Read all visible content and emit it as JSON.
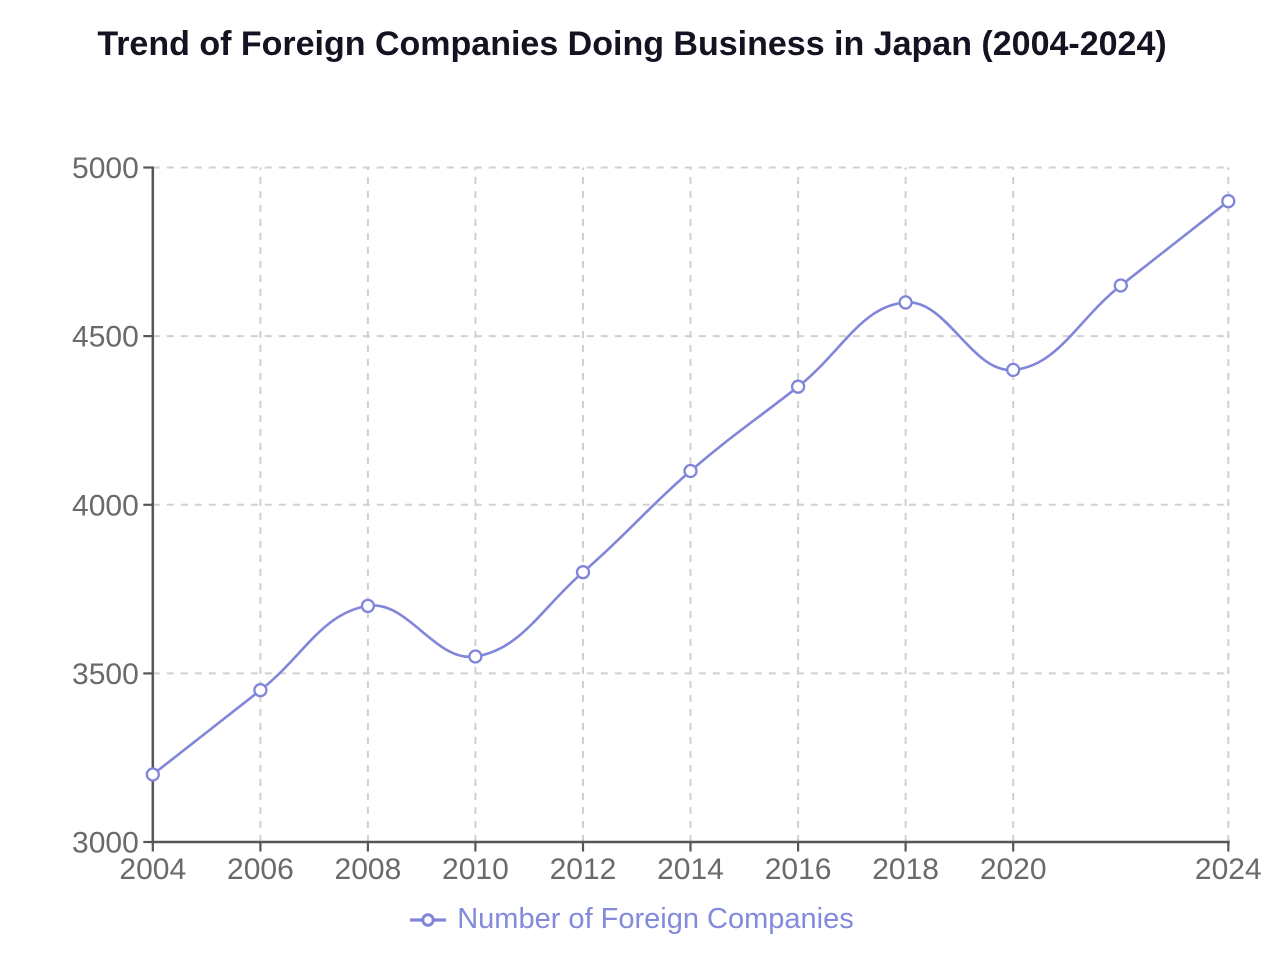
{
  "page": {
    "background_color": "#ffffff"
  },
  "chart": {
    "title": "Trend of Foreign Companies Doing Business in Japan (2004-2024)",
    "legend_label": "Number of Foreign Companies"
  },
  "chart_data": {
    "type": "line",
    "title": "Trend of Foreign Companies Doing Business in Japan (2004-2024)",
    "xlabel": "",
    "ylabel": "",
    "x": [
      2004,
      2006,
      2008,
      2010,
      2012,
      2014,
      2016,
      2018,
      2020,
      2022,
      2024
    ],
    "series": [
      {
        "name": "Number of Foreign Companies",
        "values": [
          3200,
          3450,
          3700,
          3550,
          3800,
          4100,
          4350,
          4600,
          4400,
          4650,
          4900
        ]
      }
    ],
    "xlim": [
      2004,
      2024
    ],
    "ylim": [
      3000,
      5000
    ],
    "x_ticks": [
      2004,
      2006,
      2008,
      2010,
      2012,
      2014,
      2016,
      2018,
      2020,
      2024
    ],
    "x_tick_note": "2022 tick, gridline and label are skipped even though a data point exists at 2022",
    "y_ticks": [
      3000,
      3500,
      4000,
      4500,
      5000
    ],
    "grid": "dashed",
    "curve": "smooth-spline",
    "marker_style": "open-circle",
    "legend_position": "bottom-center",
    "line_color": "#8186d8",
    "marker_fill": "#ffffff",
    "legend_color": "#8389db",
    "grid_color": "#d0d0d0",
    "axis_color": "#55565a",
    "tick_label_color": "#6a6a6a",
    "title_color": "#131321"
  }
}
